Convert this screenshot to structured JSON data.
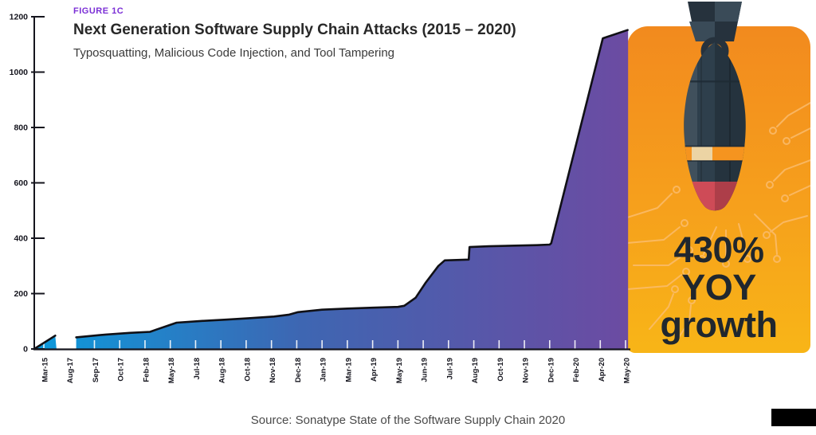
{
  "header": {
    "figure_label": "FIGURE 1C",
    "title": "Next Generation Software Supply Chain Attacks (2015 – 2020)",
    "subtitle": "Typosquatting, Malicious Code Injection, and Tool Tampering"
  },
  "panel": {
    "annotation": "430% YOY growth",
    "annotation_lines": [
      "430%",
      "YOY",
      "growth"
    ],
    "illustration": "falling-bomb-with-circuit-pattern"
  },
  "source": "Source: Sonatype State of the Software Supply Chain 2020",
  "colors": {
    "figure_label": "#7B2FD6",
    "area_gradient": [
      "#0C9ADC",
      "#3E66B2",
      "#6C4BA2"
    ],
    "area_stroke": "#101015",
    "axis": "#15151E",
    "panel_gradient": [
      "#F28A1E",
      "#F8B517"
    ],
    "annotation_text": "#20272E",
    "source_text": "#4A4A4A",
    "bomb_body": "#2E3F4C",
    "bomb_tail": "#26323D",
    "bomb_tip": "#CE4B57",
    "bomb_band_orange": "#F5941F",
    "bomb_band_cream": "#ECD4A4"
  },
  "chart_data": {
    "type": "area",
    "title": "Next Generation Software Supply Chain Attacks (2015 – 2020)",
    "subtitle": "Typosquatting, Malicious Code Injection, and Tool Tampering",
    "annotation": "430% YOY growth",
    "ylim": [
      0,
      1200
    ],
    "y_ticks": [
      1200,
      1000,
      800,
      600,
      400,
      200,
      0
    ],
    "grid": false,
    "legend": false,
    "gap_between": [
      "Mar-15",
      "Aug-17"
    ],
    "x_tick_labels": [
      "Mar-15",
      "Aug-17",
      "Sep-17",
      "Oct-17",
      "Feb-18",
      "May-18",
      "Jul-18",
      "Aug-18",
      "Oct-18",
      "Nov-18",
      "Dec-18",
      "Jan-19",
      "Mar-19",
      "Apr-19",
      "May-19",
      "Jun-19",
      "Jul-19",
      "Aug-19",
      "Oct-19",
      "Nov-19",
      "Dec-19",
      "Feb-20",
      "Apr-20",
      "May-20"
    ],
    "series": [
      {
        "name": "Next generation software supply chain attacks",
        "points": [
          {
            "label": "Mar-15",
            "value": 48
          },
          {
            "label": "Aug-17",
            "value": 42
          },
          {
            "label": "Sep-17",
            "value": 52
          },
          {
            "label": "Oct-17",
            "value": 58
          },
          {
            "label": "Feb-18",
            "value": 65
          },
          {
            "label": "May-18",
            "value": 95
          },
          {
            "label": "Jul-18",
            "value": 101
          },
          {
            "label": "Aug-18",
            "value": 106
          },
          {
            "label": "Oct-18",
            "value": 111
          },
          {
            "label": "Nov-18",
            "value": 117
          },
          {
            "label": "Dec-18",
            "value": 133
          },
          {
            "label": "Jan-19",
            "value": 142
          },
          {
            "label": "Mar-19",
            "value": 146
          },
          {
            "label": "Apr-19",
            "value": 149
          },
          {
            "label": "May-19",
            "value": 152
          },
          {
            "label": "Jun-19",
            "value": 230
          },
          {
            "label": "Jul-19",
            "value": 320
          },
          {
            "label": "Aug-19",
            "value": 368
          },
          {
            "label": "Oct-19",
            "value": 374
          },
          {
            "label": "Nov-19",
            "value": 376
          },
          {
            "label": "Dec-19",
            "value": 382
          },
          {
            "label": "Feb-20",
            "value": 720
          },
          {
            "label": "Apr-20",
            "value": 1122
          },
          {
            "label": "May-20",
            "value": 1152
          }
        ]
      }
    ],
    "outline": {
      "units": "[tick_index, value, stroke_top_edge]",
      "segments": [
        [
          [
            -0.38,
            0,
            1
          ],
          [
            0.45,
            48,
            1
          ],
          [
            0.5,
            0,
            0
          ]
        ],
        [
          [
            1.28,
            0,
            0
          ],
          [
            1.28,
            42,
            1
          ],
          [
            2.45,
            52,
            1
          ],
          [
            3.4,
            58,
            1
          ],
          [
            4.2,
            62,
            1
          ],
          [
            4.45,
            70,
            1
          ],
          [
            5.25,
            95,
            1
          ],
          [
            6.2,
            101,
            1
          ],
          [
            7.2,
            106,
            1
          ],
          [
            8.1,
            111,
            1
          ],
          [
            9.1,
            117,
            1
          ],
          [
            9.7,
            124,
            1
          ],
          [
            10.05,
            133,
            1
          ],
          [
            11,
            142,
            1
          ],
          [
            12,
            146,
            1
          ],
          [
            13,
            149,
            1
          ],
          [
            14,
            152,
            1
          ],
          [
            14.25,
            156,
            1
          ],
          [
            14.7,
            185,
            1
          ],
          [
            15.1,
            240,
            1
          ],
          [
            15.6,
            300,
            1
          ],
          [
            15.85,
            320,
            1
          ],
          [
            16.8,
            323,
            1
          ],
          [
            16.83,
            368,
            1
          ],
          [
            17.6,
            371,
            1
          ],
          [
            19.5,
            375,
            1
          ],
          [
            20,
            377,
            1
          ],
          [
            20.06,
            382,
            1
          ],
          [
            22.1,
            1122,
            1
          ],
          [
            23.08,
            1152,
            1
          ],
          [
            23.1,
            1152,
            0
          ],
          [
            23.1,
            0,
            0
          ]
        ]
      ]
    }
  }
}
